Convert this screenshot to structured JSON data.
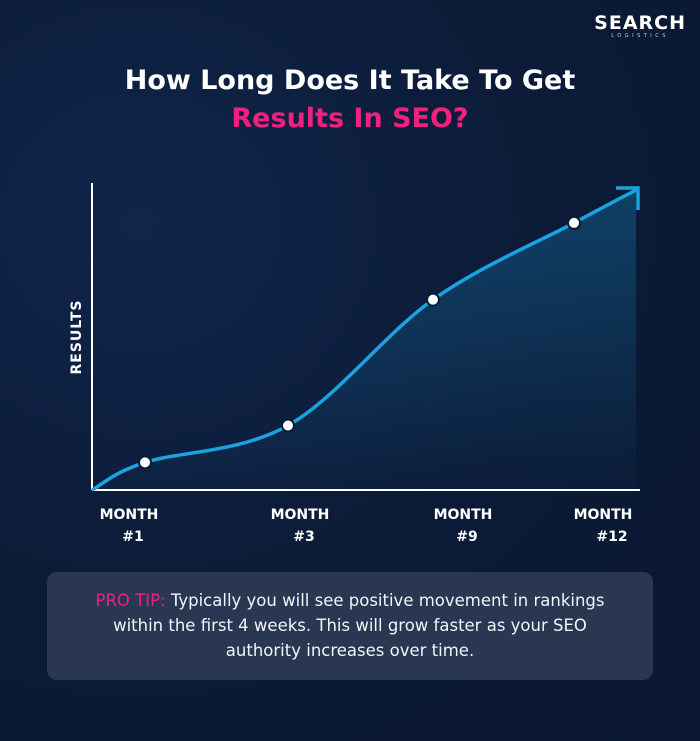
{
  "logo": {
    "main": "SEARCH",
    "sub": "LOGISTICS"
  },
  "title": {
    "line1": "How Long Does It Take To Get",
    "line2": "Results In SEO?"
  },
  "colors": {
    "background": "#0b1a36",
    "accent": "#f0217d",
    "curve": "#1aa3e0",
    "point": "#ffffff"
  },
  "chart_data": {
    "type": "line",
    "ylabel": "RESULTS",
    "xlabel": "",
    "categories": [
      [
        "MONTH",
        "#1"
      ],
      [
        "MONTH",
        "#3"
      ],
      [
        "MONTH",
        "#9"
      ],
      [
        "MONTH",
        "#12"
      ]
    ],
    "values": [
      9,
      21,
      62,
      87
    ],
    "ylim": [
      0,
      100
    ],
    "grid": false,
    "trend_arrow": true,
    "area_fill": true
  },
  "tip": {
    "label": "PRO TIP:",
    "text": " Typically you will see positive movement in rankings within the first 4 weeks. This will grow faster as your SEO authority increases over time."
  }
}
